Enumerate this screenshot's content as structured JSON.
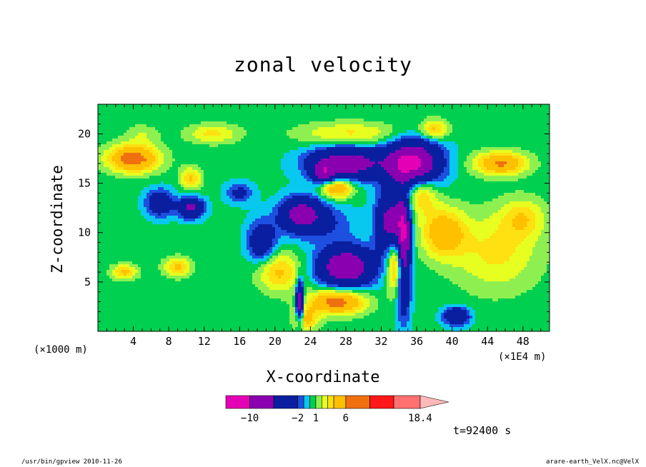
{
  "chart_data": {
    "type": "heatmap",
    "title": "zonal velocity",
    "xlabel": "X-coordinate",
    "ylabel": "Z-coordinate",
    "x_unit_left": "(×1000 m)",
    "x_unit_right": "(×1E4 m)",
    "x_ticks": [
      "4",
      "8",
      "12",
      "16",
      "20",
      "24",
      "28",
      "32",
      "36",
      "40",
      "44",
      "48"
    ],
    "x_tick_values": [
      4,
      8,
      12,
      16,
      20,
      24,
      28,
      32,
      36,
      40,
      44,
      48
    ],
    "y_ticks": [
      "5",
      "10",
      "15",
      "20"
    ],
    "y_tick_values": [
      5,
      10,
      15,
      20
    ],
    "xlim": [
      0,
      51
    ],
    "ylim": [
      0,
      23
    ],
    "colorbar": {
      "levels": [
        -14,
        -10,
        -6,
        -2,
        -1,
        0,
        1,
        2,
        3,
        4,
        6,
        10,
        14,
        18.4
      ],
      "colors": [
        "#e400b4",
        "#8a00b0",
        "#0a1fa0",
        "#1d4fe0",
        "#08c8f0",
        "#00d050",
        "#8ef050",
        "#e6ff20",
        "#ffe010",
        "#ffc000",
        "#f07010",
        "#ff1818",
        "#ff7070",
        "#ffb8b8"
      ],
      "tick_labels": [
        "−10",
        "−2",
        "1",
        "6",
        "18.4"
      ],
      "tick_values": [
        -10,
        -2,
        1,
        6,
        18.4
      ]
    },
    "grid": false,
    "annotations": [
      "t=92400 s"
    ]
  },
  "footer": {
    "left": "/usr/bin/gpview  2010-11-26",
    "right": "arare-earth_VelX.nc@VelX"
  }
}
